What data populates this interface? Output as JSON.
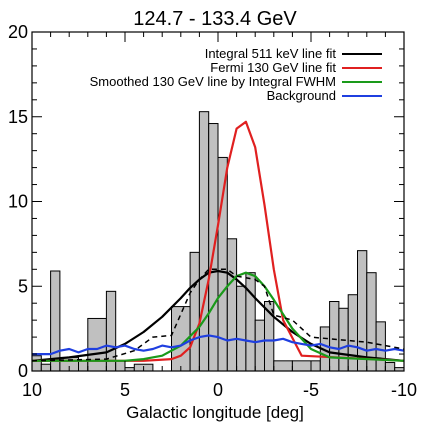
{
  "chart_data": {
    "type": "histogram-with-lines",
    "title": "124.7 - 133.4 GeV",
    "xlabel": "Galactic longitude [deg]",
    "ylabel": "",
    "xlim": [
      10,
      -10
    ],
    "ylim": [
      0,
      20
    ],
    "x_ticks": [
      10,
      5,
      0,
      -5,
      -10
    ],
    "x_tick_labels": [
      "10",
      "5",
      "0",
      "-5",
      "-10"
    ],
    "y_ticks": [
      0,
      5,
      10,
      15,
      20
    ],
    "y_tick_labels": [
      "0",
      "5",
      "10",
      "15",
      "20"
    ],
    "legend_position": "top-right",
    "histogram": {
      "fill": "#c0c0c0",
      "edges": [
        10,
        9.5,
        9.0,
        8.5,
        7.5,
        7.0,
        6.0,
        5.5,
        5.0,
        4.5,
        3.5,
        2.5,
        1.5,
        1.0,
        0.5,
        0.0,
        -0.5,
        -1.0,
        -1.5,
        -2.0,
        -2.5,
        -3.0,
        -4.0,
        -5.5,
        -6.0,
        -6.5,
        -7.0,
        -7.5,
        -8.0,
        -8.5,
        -9.0,
        -9.5,
        -10.0
      ],
      "heights": [
        0.9,
        0.4,
        5.9,
        0.8,
        0.6,
        3.1,
        4.7,
        0.6,
        0.2,
        0.4,
        0.0,
        3.8,
        7.0,
        15.3,
        14.6,
        12.6,
        7.8,
        5.0,
        5.8,
        3.0,
        4.1,
        0.6,
        0.6,
        2.6,
        4.1,
        3.7,
        4.5,
        7.1,
        5.8,
        2.9,
        0.5,
        0.2
      ]
    },
    "series": [
      {
        "name": "Integral 511 keV line fit",
        "color": "#000000",
        "style": "solid",
        "x": [
          10,
          8,
          6,
          5,
          4,
          3,
          2,
          1.5,
          1,
          0.5,
          0,
          -0.5,
          -1,
          -1.5,
          -2,
          -3,
          -4,
          -5,
          -6,
          -8,
          -10
        ],
        "y": [
          0.6,
          0.8,
          1.1,
          1.6,
          2.3,
          3.2,
          4.3,
          4.9,
          5.4,
          5.8,
          5.9,
          5.8,
          5.4,
          4.9,
          4.3,
          3.2,
          2.3,
          1.6,
          1.1,
          0.8,
          0.6
        ]
      },
      {
        "name": "Fermi 130 GeV line fit",
        "color": "#e02020",
        "style": "solid",
        "x": [
          10,
          4,
          2.5,
          2,
          1.5,
          1,
          0.5,
          0,
          -0.5,
          -1,
          -1.5,
          -2,
          -2.5,
          -3,
          -3.5,
          -4.5,
          -10
        ],
        "y": [
          0.6,
          0.6,
          0.7,
          0.9,
          1.4,
          2.8,
          5.4,
          8.6,
          12.0,
          14.3,
          14.7,
          13.2,
          9.8,
          6.0,
          3.0,
          0.9,
          0.6
        ]
      },
      {
        "name": "Smoothed 130 GeV line by Integral FWHM",
        "color": "#1a9a1a",
        "style": "solid",
        "x": [
          10,
          5,
          4,
          3,
          2,
          1,
          0.5,
          0,
          -0.5,
          -1,
          -1.5,
          -2,
          -2.5,
          -3,
          -4,
          -5,
          -6,
          -10
        ],
        "y": [
          0.6,
          0.6,
          0.7,
          0.9,
          1.5,
          2.6,
          3.4,
          4.3,
          5.0,
          5.6,
          5.8,
          5.6,
          5.0,
          4.2,
          2.5,
          1.3,
          0.8,
          0.6
        ]
      },
      {
        "name": "Background",
        "color": "#1f3fe0",
        "style": "solid",
        "x": [
          10,
          9.5,
          9,
          8.5,
          8,
          7.5,
          7,
          6.5,
          6,
          5.5,
          5,
          4.5,
          4,
          3.5,
          3,
          2.5,
          2,
          1.5,
          1,
          0.5,
          0,
          -0.5,
          -1,
          -1.5,
          -2,
          -2.5,
          -3,
          -3.5,
          -4,
          -4.5,
          -5,
          -5.5,
          -6,
          -6.5,
          -7,
          -7.5,
          -8,
          -8.5,
          -9,
          -9.5,
          -10
        ],
        "y": [
          1.0,
          1.0,
          1.0,
          1.2,
          1.3,
          1.1,
          1.3,
          1.3,
          1.5,
          1.4,
          1.5,
          1.3,
          1.2,
          1.3,
          1.5,
          1.4,
          1.5,
          1.8,
          2.0,
          2.1,
          2.0,
          1.8,
          1.9,
          1.8,
          1.7,
          1.8,
          1.8,
          1.9,
          1.7,
          1.6,
          1.5,
          1.6,
          1.4,
          1.3,
          1.5,
          1.4,
          1.2,
          1.3,
          1.2,
          1.3,
          1.2
        ]
      },
      {
        "name": "",
        "color": "#000000",
        "style": "dashed",
        "x": [
          10,
          6,
          4.5,
          3.5,
          2.5,
          1.5,
          1.0,
          0.5,
          0.0,
          -0.5,
          -1.0,
          -1.5,
          -2.0,
          -2.5,
          -3.0,
          -4.0,
          -5.0,
          -6.0,
          -7.0,
          -8.0,
          -9.0,
          -10.0
        ],
        "y": [
          0.6,
          0.7,
          1.2,
          2.0,
          2.1,
          4.6,
          5.4,
          6.0,
          6.0,
          6.0,
          5.6,
          5.5,
          5.4,
          5.0,
          3.3,
          3.0,
          2.0,
          1.9,
          1.8,
          1.7,
          1.5,
          1.3
        ]
      }
    ],
    "legend": [
      {
        "label": "Integral 511 keV line fit",
        "color": "#000000"
      },
      {
        "label": "Fermi 130 GeV line fit",
        "color": "#e02020"
      },
      {
        "label": "Smoothed 130 GeV line by Integral FWHM",
        "color": "#1a9a1a"
      },
      {
        "label": "Background",
        "color": "#1f3fe0"
      }
    ]
  }
}
